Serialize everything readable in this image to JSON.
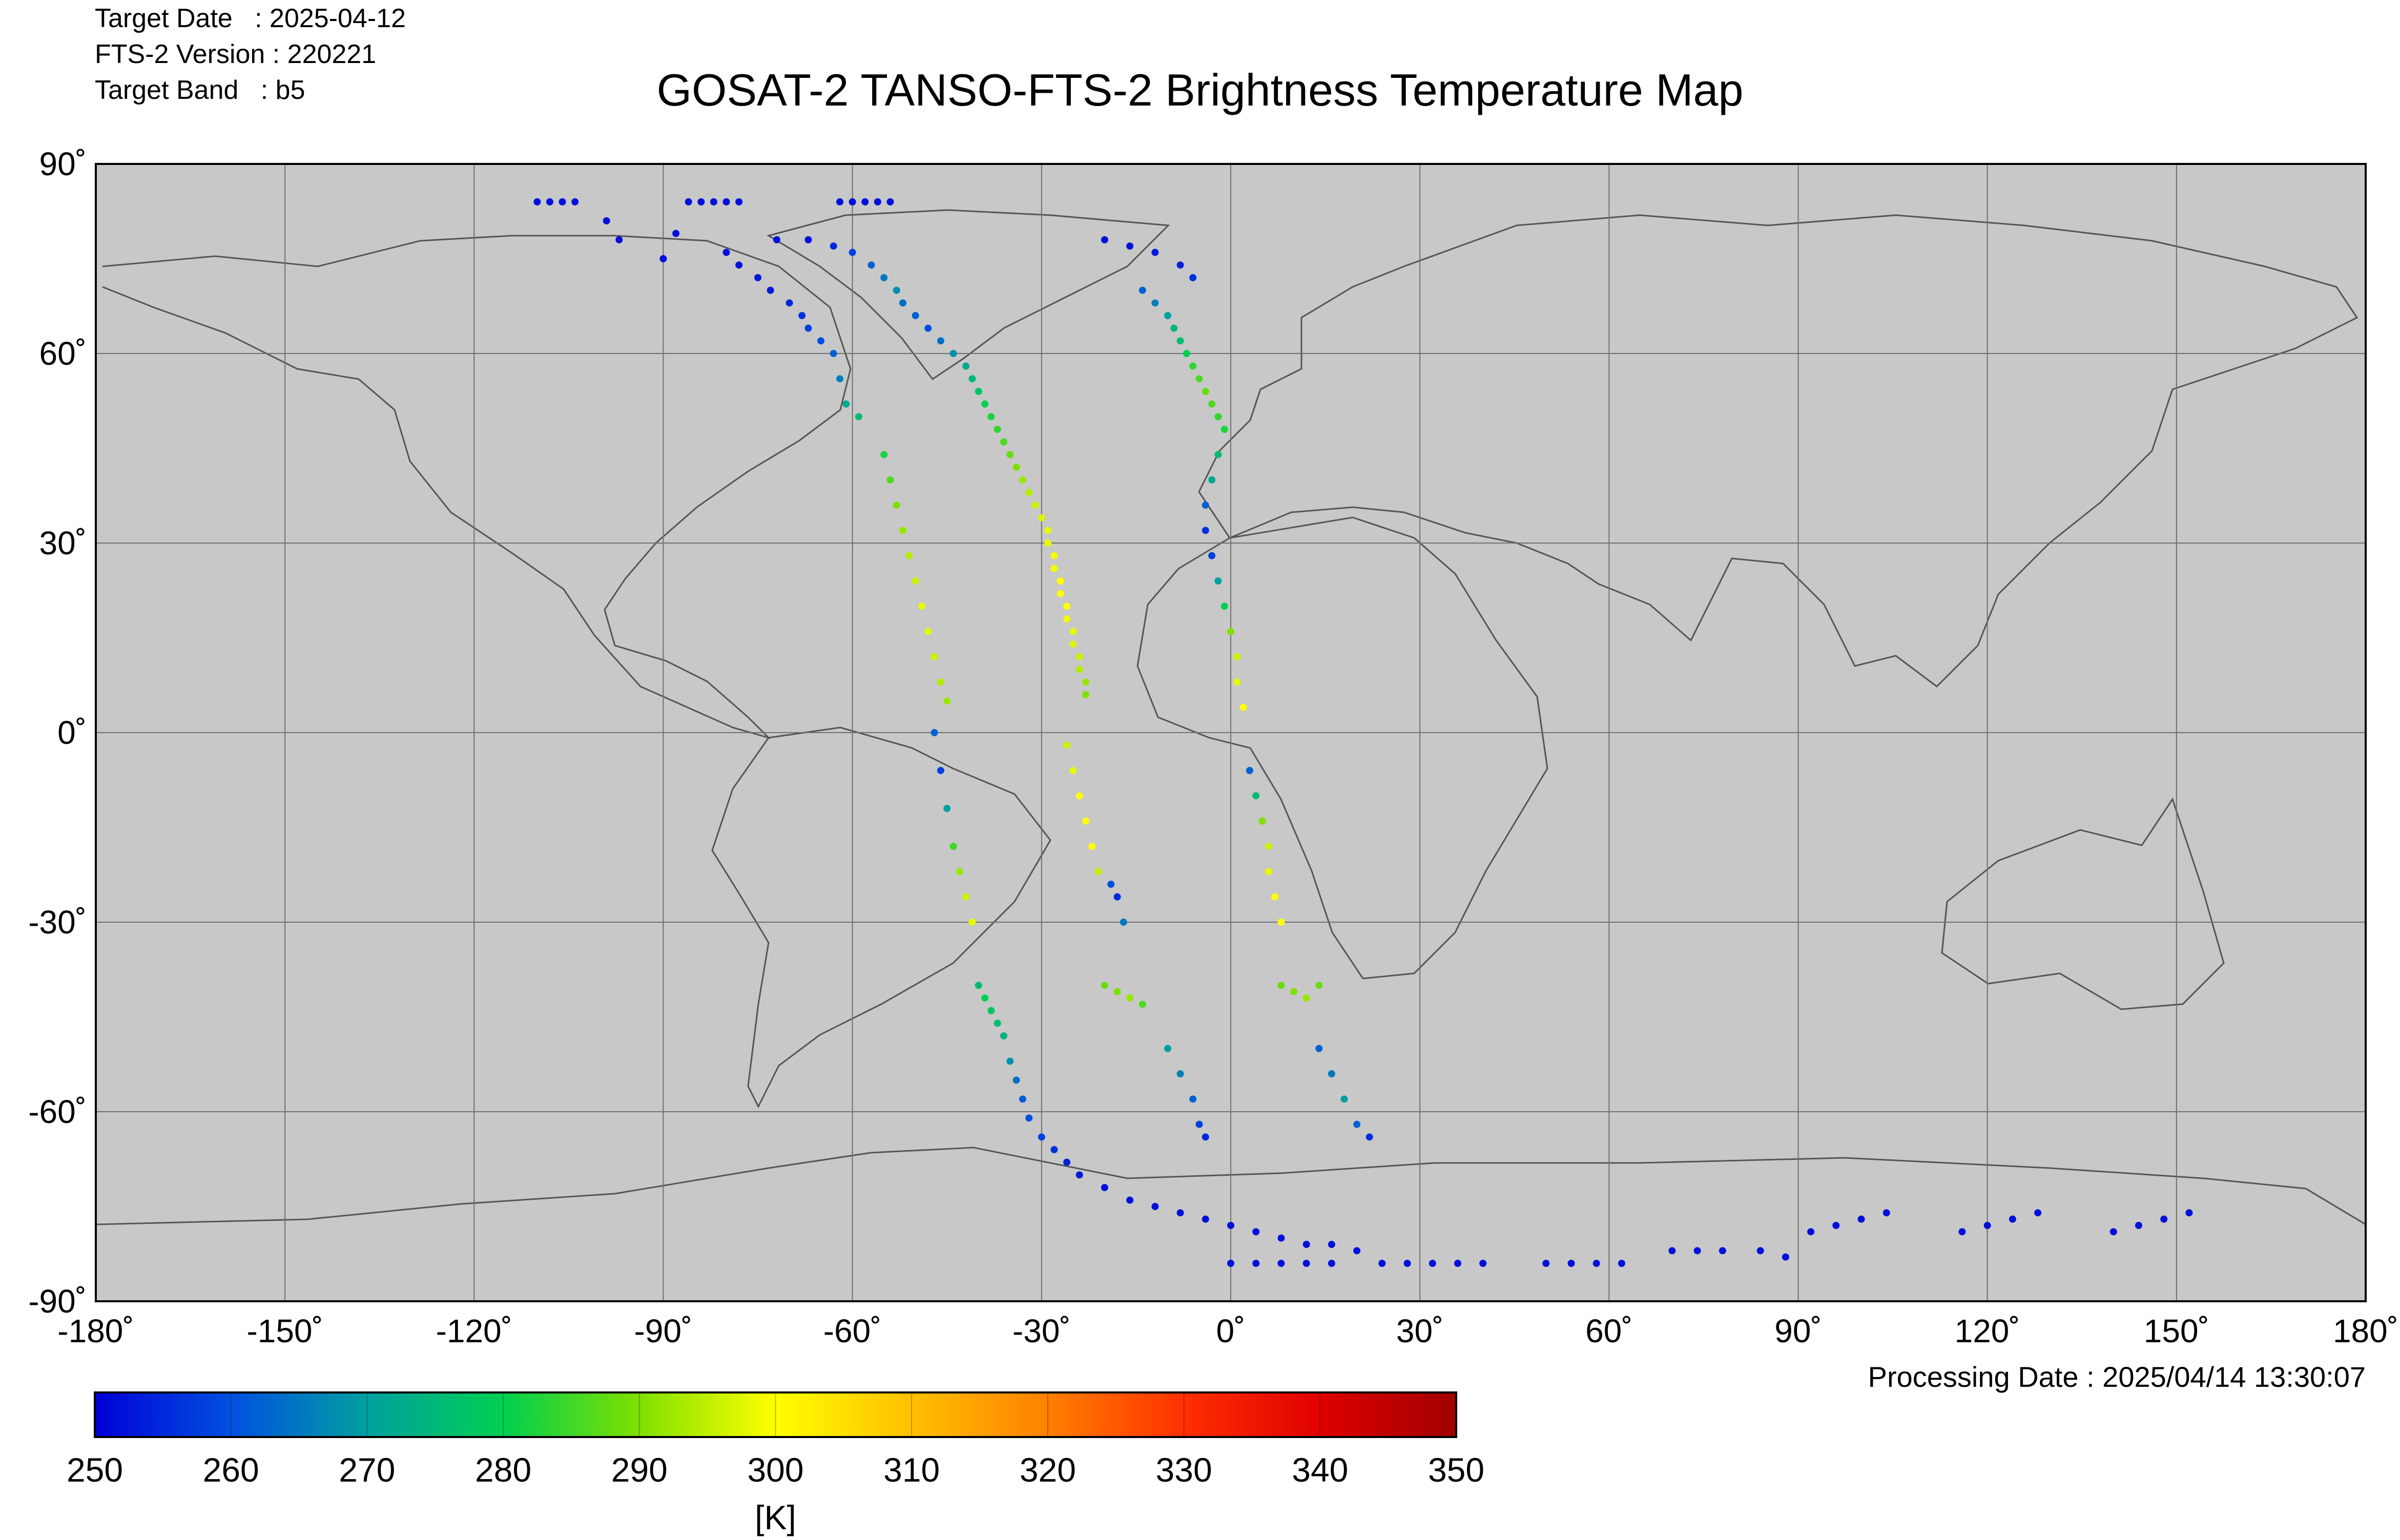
{
  "header": {
    "target_date_line": "Target Date   : 2025-04-12",
    "version_line": "FTS-2 Version : 220221",
    "band_line": "Target Band   : b5"
  },
  "title": "GOSAT-2 TANSO-FTS-2 Brightness Temperature Map",
  "footer": {
    "processing_line": "Processing Date : 2025/04/14 13:30:07"
  },
  "map": {
    "projection": "equirectangular",
    "lon_range": [
      -180,
      180
    ],
    "lat_range": [
      -90,
      90
    ],
    "lon_ticks": [
      "-180˚",
      "-150˚",
      "-120˚",
      "-90˚",
      "-60˚",
      "-30˚",
      "0˚",
      "30˚",
      "60˚",
      "90˚",
      "120˚",
      "150˚",
      "180˚"
    ],
    "lat_ticks": [
      "90˚",
      "60˚",
      "30˚",
      "0˚",
      "-30˚",
      "-60˚",
      "-90˚"
    ],
    "grid": true,
    "ocean_color": "#c8c8c8",
    "coast_color": "#555555"
  },
  "colorbar": {
    "min": 250,
    "max": 350,
    "ticks": [
      "250",
      "260",
      "270",
      "280",
      "290",
      "300",
      "310",
      "320",
      "330",
      "340",
      "350"
    ],
    "unit": "[K]",
    "colors": [
      "#0000d8",
      "#0050e0",
      "#00a0a0",
      "#00d050",
      "#80e000",
      "#ffff00",
      "#ffc000",
      "#ff8000",
      "#ff3000",
      "#e00000",
      "#a00000"
    ]
  },
  "chart_data": {
    "type": "scatter",
    "title": "GOSAT-2 TANSO-FTS-2 Brightness Temperature Map",
    "xlabel": "",
    "ylabel": "",
    "xlim": [
      -180,
      180
    ],
    "ylim": [
      -90,
      90
    ],
    "value_unit": "K",
    "value_range": [
      250,
      350
    ],
    "series": [
      {
        "points": [
          [
            -110,
            84,
            252
          ],
          [
            -108,
            84,
            252
          ],
          [
            -106,
            84,
            252
          ],
          [
            -104,
            84,
            252
          ],
          [
            -86,
            84,
            252
          ],
          [
            -84,
            84,
            252
          ],
          [
            -82,
            84,
            252
          ],
          [
            -80,
            84,
            252
          ],
          [
            -78,
            84,
            252
          ],
          [
            -62,
            84,
            252
          ],
          [
            -60,
            84,
            252
          ],
          [
            -58,
            84,
            252
          ],
          [
            -56,
            84,
            252
          ],
          [
            -54,
            84,
            252
          ],
          [
            -99,
            81,
            252
          ],
          [
            -97,
            78,
            252
          ],
          [
            -88,
            79,
            252
          ],
          [
            -90,
            75,
            252
          ],
          [
            -80,
            76,
            252
          ],
          [
            -78,
            74,
            252
          ],
          [
            -75,
            72,
            253
          ],
          [
            -73,
            70,
            253
          ],
          [
            -70,
            68,
            255
          ],
          [
            -68,
            66,
            256
          ],
          [
            -67,
            64,
            258
          ],
          [
            -65,
            62,
            260
          ],
          [
            -63,
            60,
            262
          ],
          [
            -62,
            56,
            266
          ],
          [
            -61,
            52,
            272
          ],
          [
            -59,
            50,
            276
          ],
          [
            -72,
            78,
            252
          ],
          [
            -67,
            78,
            252
          ],
          [
            -63,
            77,
            255
          ],
          [
            -60,
            76,
            258
          ],
          [
            -57,
            74,
            262
          ],
          [
            -55,
            72,
            265
          ],
          [
            -53,
            70,
            268
          ],
          [
            -52,
            68,
            264
          ],
          [
            -50,
            66,
            262
          ],
          [
            -48,
            64,
            260
          ],
          [
            -46,
            62,
            264
          ],
          [
            -44,
            60,
            268
          ],
          [
            -42,
            58,
            272
          ],
          [
            -41,
            56,
            275
          ],
          [
            -40,
            54,
            278
          ],
          [
            -39,
            52,
            280
          ],
          [
            -38,
            50,
            282
          ],
          [
            -37,
            48,
            284
          ],
          [
            -36,
            46,
            286
          ],
          [
            -35,
            44,
            288
          ],
          [
            -34,
            42,
            290
          ],
          [
            -33,
            40,
            292
          ],
          [
            -32,
            38,
            294
          ],
          [
            -31,
            36,
            296
          ],
          [
            -30,
            34,
            297
          ],
          [
            -29,
            32,
            298
          ],
          [
            -29,
            30,
            298
          ],
          [
            -28,
            28,
            299
          ],
          [
            -28,
            26,
            299
          ],
          [
            -27,
            24,
            300
          ],
          [
            -27,
            22,
            300
          ],
          [
            -26,
            20,
            300
          ],
          [
            -26,
            18,
            299
          ],
          [
            -25,
            16,
            298
          ],
          [
            -25,
            14,
            297
          ],
          [
            -24,
            12,
            296
          ],
          [
            -24,
            10,
            294
          ],
          [
            -23,
            8,
            292
          ],
          [
            -23,
            6,
            290
          ],
          [
            -55,
            44,
            282
          ],
          [
            -54,
            40,
            286
          ],
          [
            -53,
            36,
            290
          ],
          [
            -52,
            32,
            292
          ],
          [
            -51,
            28,
            294
          ],
          [
            -50,
            24,
            296
          ],
          [
            -49,
            20,
            298
          ],
          [
            -48,
            16,
            298
          ],
          [
            -47,
            12,
            296
          ],
          [
            -46,
            8,
            294
          ],
          [
            -45,
            5,
            292
          ],
          [
            -47,
            0,
            262
          ],
          [
            -46,
            -6,
            258
          ],
          [
            -45,
            -12,
            270
          ],
          [
            -44,
            -18,
            285
          ],
          [
            -43,
            -22,
            292
          ],
          [
            -42,
            -26,
            296
          ],
          [
            -41,
            -30,
            298
          ],
          [
            -26,
            -2,
            296
          ],
          [
            -25,
            -6,
            298
          ],
          [
            -24,
            -10,
            300
          ],
          [
            -23,
            -14,
            300
          ],
          [
            -22,
            -18,
            300
          ],
          [
            -21,
            -22,
            295
          ],
          [
            -19,
            -24,
            260
          ],
          [
            -18,
            -26,
            255
          ],
          [
            -17,
            -30,
            265
          ],
          [
            -40,
            -40,
            276
          ],
          [
            -39,
            -42,
            280
          ],
          [
            -38,
            -44,
            278
          ],
          [
            -37,
            -46,
            276
          ],
          [
            -36,
            -48,
            274
          ],
          [
            -20,
            -40,
            288
          ],
          [
            -18,
            -41,
            290
          ],
          [
            -16,
            -42,
            292
          ],
          [
            -14,
            -43,
            286
          ],
          [
            8,
            -40,
            288
          ],
          [
            10,
            -41,
            290
          ],
          [
            12,
            -42,
            292
          ],
          [
            14,
            -40,
            288
          ],
          [
            -20,
            78,
            252
          ],
          [
            -16,
            77,
            252
          ],
          [
            -12,
            76,
            253
          ],
          [
            -8,
            74,
            254
          ],
          [
            -6,
            72,
            256
          ],
          [
            -14,
            70,
            262
          ],
          [
            -12,
            68,
            266
          ],
          [
            -10,
            66,
            270
          ],
          [
            -9,
            64,
            274
          ],
          [
            -8,
            62,
            276
          ],
          [
            -7,
            60,
            280
          ],
          [
            -6,
            58,
            284
          ],
          [
            -5,
            56,
            286
          ],
          [
            -4,
            54,
            288
          ],
          [
            -3,
            52,
            286
          ],
          [
            -2,
            50,
            284
          ],
          [
            -1,
            48,
            282
          ],
          [
            -2,
            44,
            276
          ],
          [
            -3,
            40,
            272
          ],
          [
            -4,
            36,
            262
          ],
          [
            -4,
            32,
            256
          ],
          [
            -3,
            28,
            258
          ],
          [
            -2,
            24,
            270
          ],
          [
            -1,
            20,
            280
          ],
          [
            0,
            16,
            290
          ],
          [
            1,
            12,
            296
          ],
          [
            1,
            8,
            298
          ],
          [
            2,
            4,
            300
          ],
          [
            3,
            -6,
            262
          ],
          [
            4,
            -10,
            275
          ],
          [
            5,
            -14,
            290
          ],
          [
            6,
            -18,
            296
          ],
          [
            6,
            -22,
            298
          ],
          [
            7,
            -26,
            300
          ],
          [
            8,
            -30,
            300
          ],
          [
            -10,
            -50,
            270
          ],
          [
            -8,
            -54,
            266
          ],
          [
            -6,
            -58,
            262
          ],
          [
            -5,
            -62,
            258
          ],
          [
            -4,
            -64,
            255
          ],
          [
            14,
            -50,
            262
          ],
          [
            16,
            -54,
            265
          ],
          [
            18,
            -58,
            270
          ],
          [
            20,
            -62,
            262
          ],
          [
            22,
            -64,
            256
          ],
          [
            -35,
            -52,
            268
          ],
          [
            -34,
            -55,
            264
          ],
          [
            -33,
            -58,
            262
          ],
          [
            -32,
            -61,
            260
          ],
          [
            -30,
            -64,
            258
          ],
          [
            -28,
            -66,
            256
          ],
          [
            -26,
            -68,
            254
          ],
          [
            -24,
            -70,
            253
          ],
          [
            -20,
            -72,
            252
          ],
          [
            -16,
            -74,
            252
          ],
          [
            -12,
            -75,
            252
          ],
          [
            -8,
            -76,
            252
          ],
          [
            -4,
            -77,
            252
          ],
          [
            0,
            -78,
            252
          ],
          [
            4,
            -79,
            252
          ],
          [
            8,
            -80,
            252
          ],
          [
            12,
            -81,
            252
          ],
          [
            16,
            -81,
            252
          ],
          [
            20,
            -82,
            252
          ],
          [
            0,
            -84,
            252
          ],
          [
            4,
            -84,
            252
          ],
          [
            8,
            -84,
            252
          ],
          [
            12,
            -84,
            252
          ],
          [
            16,
            -84,
            252
          ],
          [
            24,
            -84,
            252
          ],
          [
            28,
            -84,
            252
          ],
          [
            32,
            -84,
            252
          ],
          [
            36,
            -84,
            252
          ],
          [
            40,
            -84,
            252
          ],
          [
            50,
            -84,
            252
          ],
          [
            54,
            -84,
            252
          ],
          [
            58,
            -84,
            252
          ],
          [
            62,
            -84,
            252
          ],
          [
            70,
            -82,
            252
          ],
          [
            74,
            -82,
            252
          ],
          [
            78,
            -82,
            252
          ],
          [
            84,
            -82,
            252
          ],
          [
            88,
            -83,
            252
          ],
          [
            92,
            -79,
            252
          ],
          [
            96,
            -78,
            252
          ],
          [
            100,
            -77,
            252
          ],
          [
            104,
            -76,
            252
          ],
          [
            116,
            -79,
            252
          ],
          [
            120,
            -78,
            252
          ],
          [
            124,
            -77,
            252
          ],
          [
            128,
            -76,
            252
          ],
          [
            140,
            -79,
            252
          ],
          [
            144,
            -78,
            252
          ],
          [
            148,
            -77,
            252
          ],
          [
            152,
            -76,
            252
          ]
        ]
      }
    ]
  }
}
